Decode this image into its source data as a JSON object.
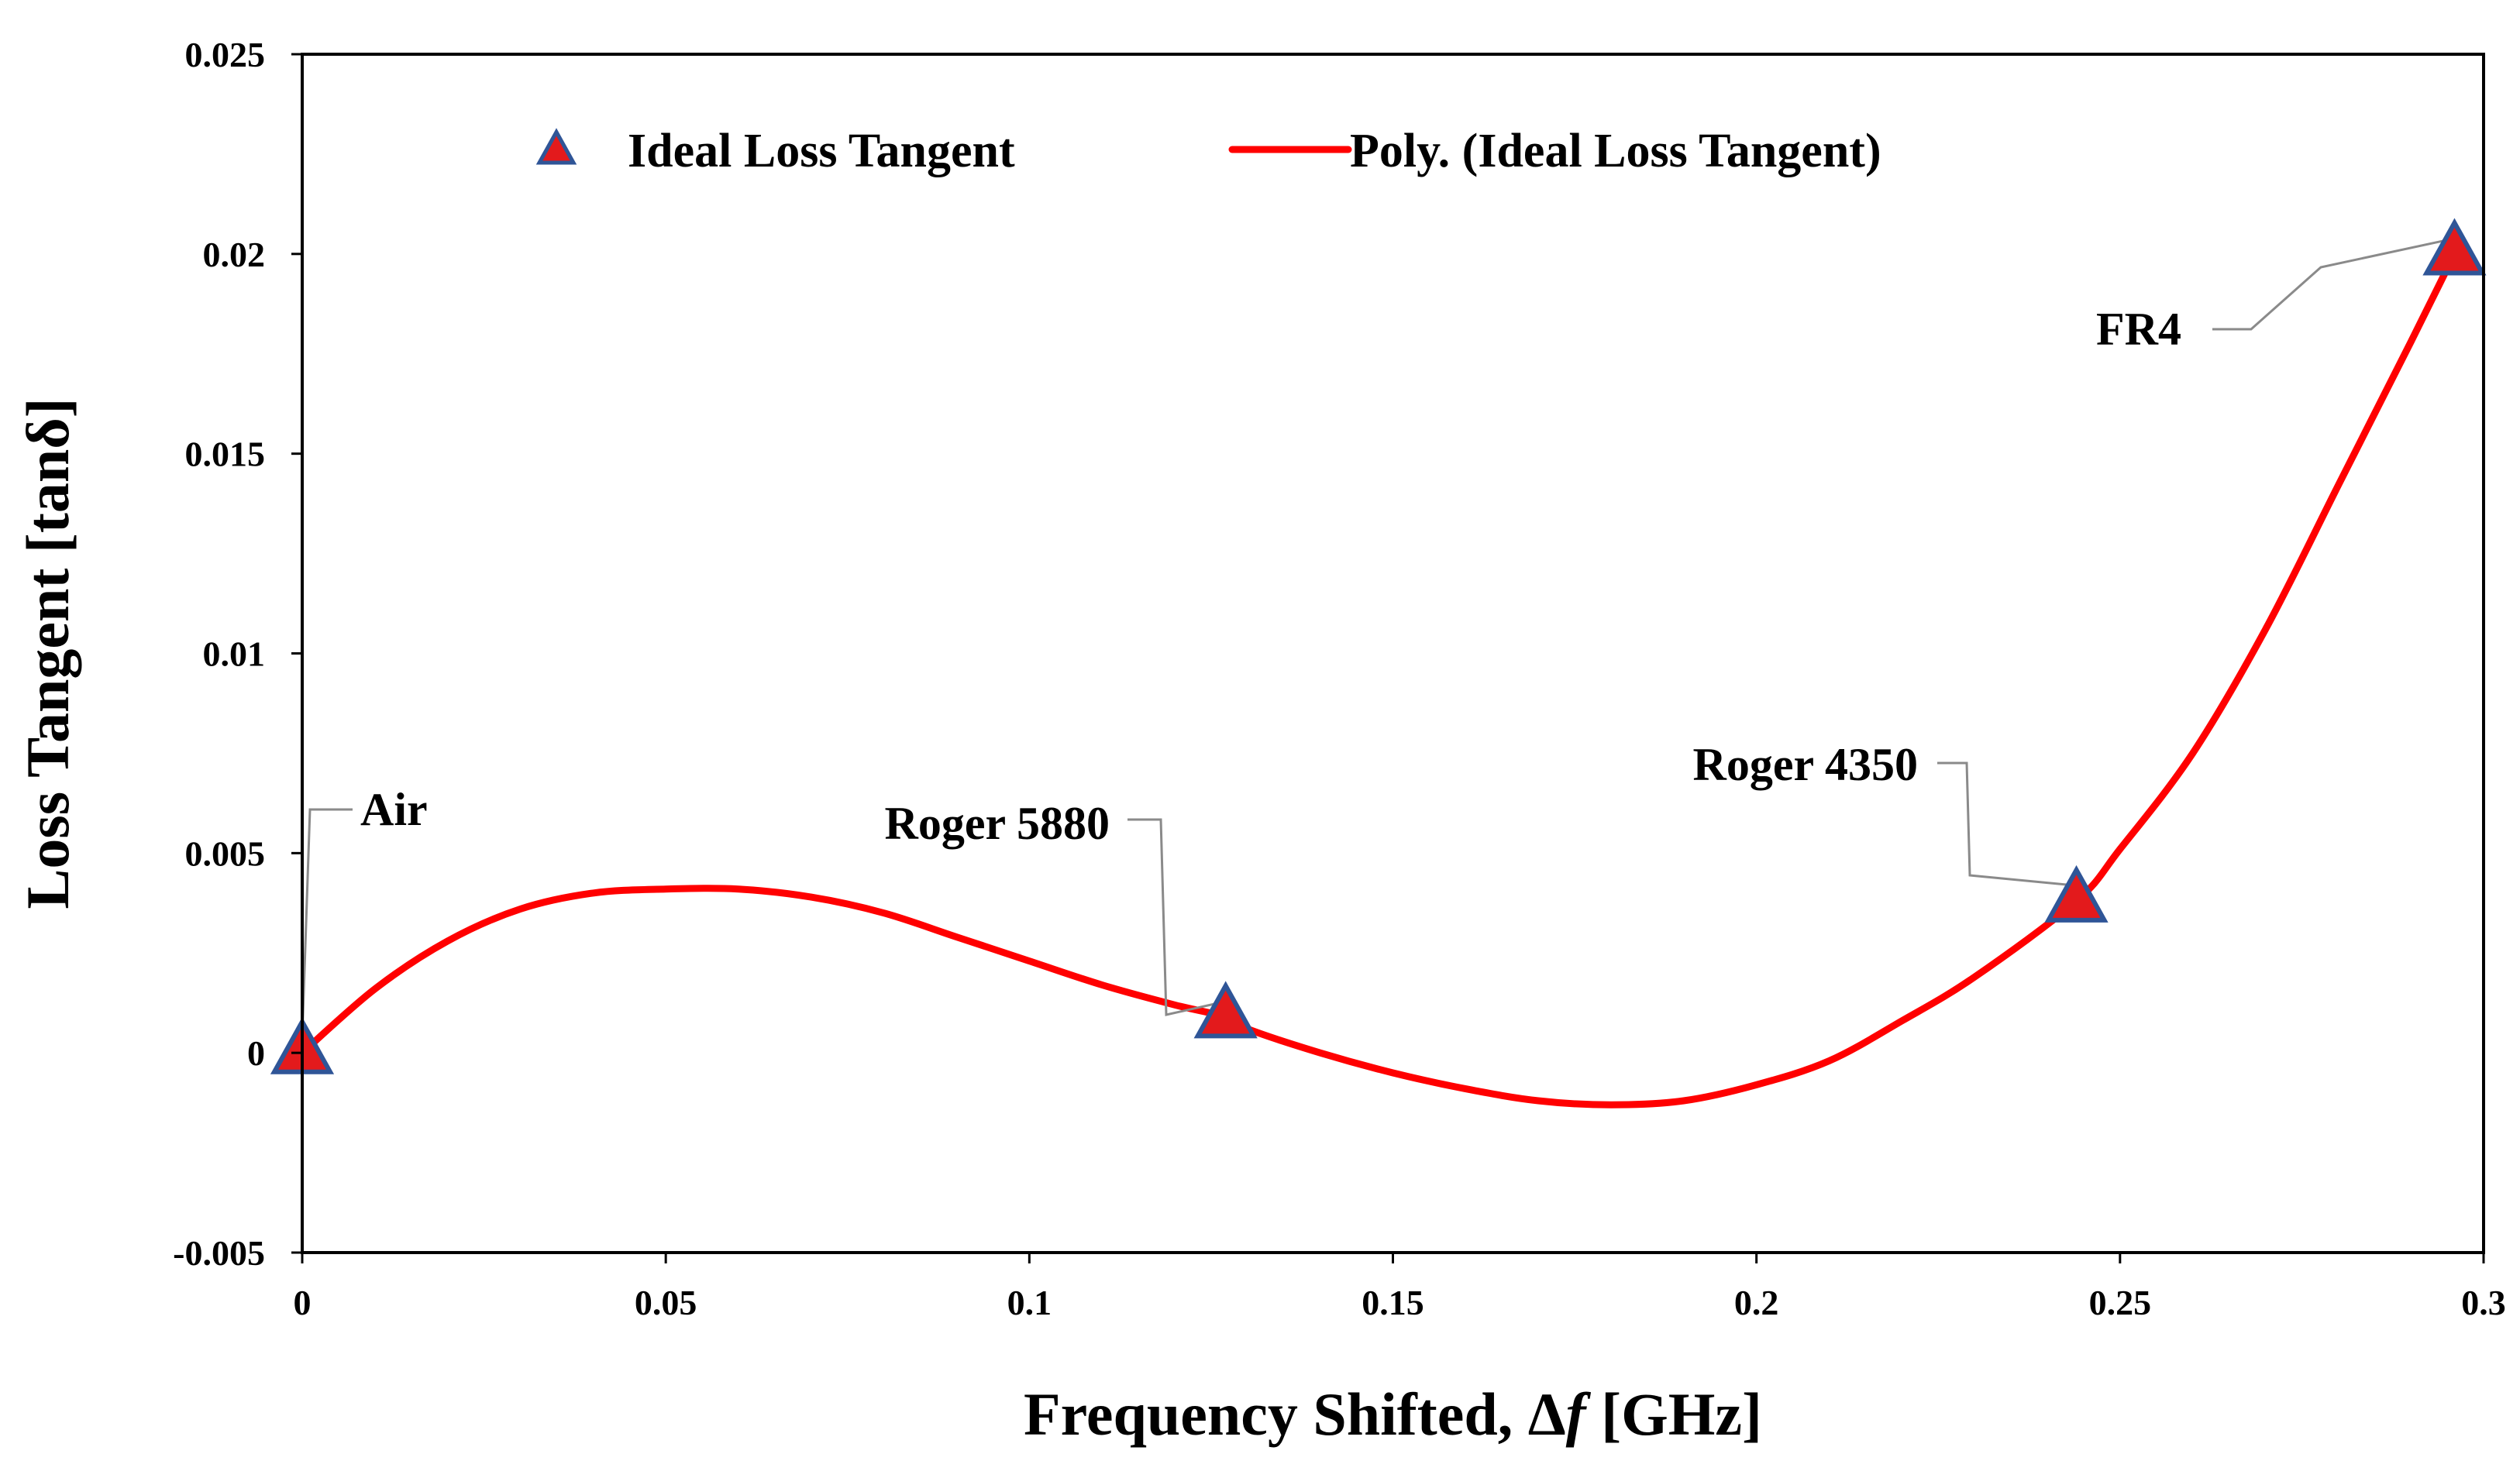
{
  "chart_data": {
    "type": "scatter",
    "xlabel_prefix": "Frequency Shifted, Δ",
    "xlabel_var": "f",
    "xlabel_suffix": " [GHz]",
    "ylabel": "Loss Tangent [tanδ]",
    "xlim": [
      0,
      0.3
    ],
    "ylim": [
      -0.005,
      0.025
    ],
    "grid": false,
    "x_ticks": [
      0,
      0.05,
      0.1,
      0.15,
      0.2,
      0.25,
      0.3
    ],
    "x_tick_labels": [
      "0",
      "0.05",
      "0.1",
      "0.15",
      "0.2",
      "0.25",
      "0.3"
    ],
    "y_ticks": [
      -0.005,
      0,
      0.005,
      0.01,
      0.015,
      0.02,
      0.025
    ],
    "y_tick_labels": [
      "-0.005",
      "0",
      "0.005",
      "0.01",
      "0.015",
      "0.02",
      "0.025"
    ],
    "series": [
      {
        "name": "Ideal Loss Tangent",
        "kind": "marker",
        "marker": "triangle",
        "fill": "#e31a1c",
        "edge": "#2f5597",
        "points": [
          {
            "x": 0.0,
            "y": 0.0,
            "label": "Air"
          },
          {
            "x": 0.127,
            "y": 0.0009,
            "label": "Roger 5880"
          },
          {
            "x": 0.244,
            "y": 0.0038,
            "label": "Roger 4350"
          },
          {
            "x": 0.296,
            "y": 0.02,
            "label": "FR4"
          }
        ]
      },
      {
        "name": "Poly. (Ideal Loss Tangent)",
        "kind": "trendline",
        "color": "#ff0000",
        "x": [
          0.0,
          0.01,
          0.02,
          0.03,
          0.04,
          0.05,
          0.06,
          0.07,
          0.08,
          0.09,
          0.1,
          0.11,
          0.12,
          0.127,
          0.13,
          0.14,
          0.15,
          0.16,
          0.17,
          0.18,
          0.19,
          0.2,
          0.21,
          0.22,
          0.23,
          0.244,
          0.25,
          0.26,
          0.27,
          0.28,
          0.29,
          0.296
        ],
        "y": [
          0.0,
          0.0016,
          0.0028,
          0.0036,
          0.004,
          0.0041,
          0.0041,
          0.0039,
          0.0035,
          0.0029,
          0.0023,
          0.0017,
          0.0012,
          0.0009,
          0.0006,
          0.0,
          -0.0005,
          -0.0009,
          -0.0012,
          -0.0013,
          -0.0012,
          -0.0008,
          -0.0002,
          0.0008,
          0.0019,
          0.0038,
          0.0051,
          0.0075,
          0.0106,
          0.0142,
          0.0178,
          0.02
        ]
      }
    ],
    "annotations": [
      {
        "text": "Air",
        "x": 0.0,
        "y": 0.0
      },
      {
        "text": "Roger 5880",
        "x": 0.127,
        "y": 0.0009
      },
      {
        "text": "Roger 4350",
        "x": 0.244,
        "y": 0.0038
      },
      {
        "text": "FR4",
        "x": 0.296,
        "y": 0.02
      }
    ],
    "legend": {
      "placement": "top",
      "entries": [
        "Ideal Loss Tangent",
        "Poly. (Ideal Loss Tangent)"
      ]
    }
  }
}
